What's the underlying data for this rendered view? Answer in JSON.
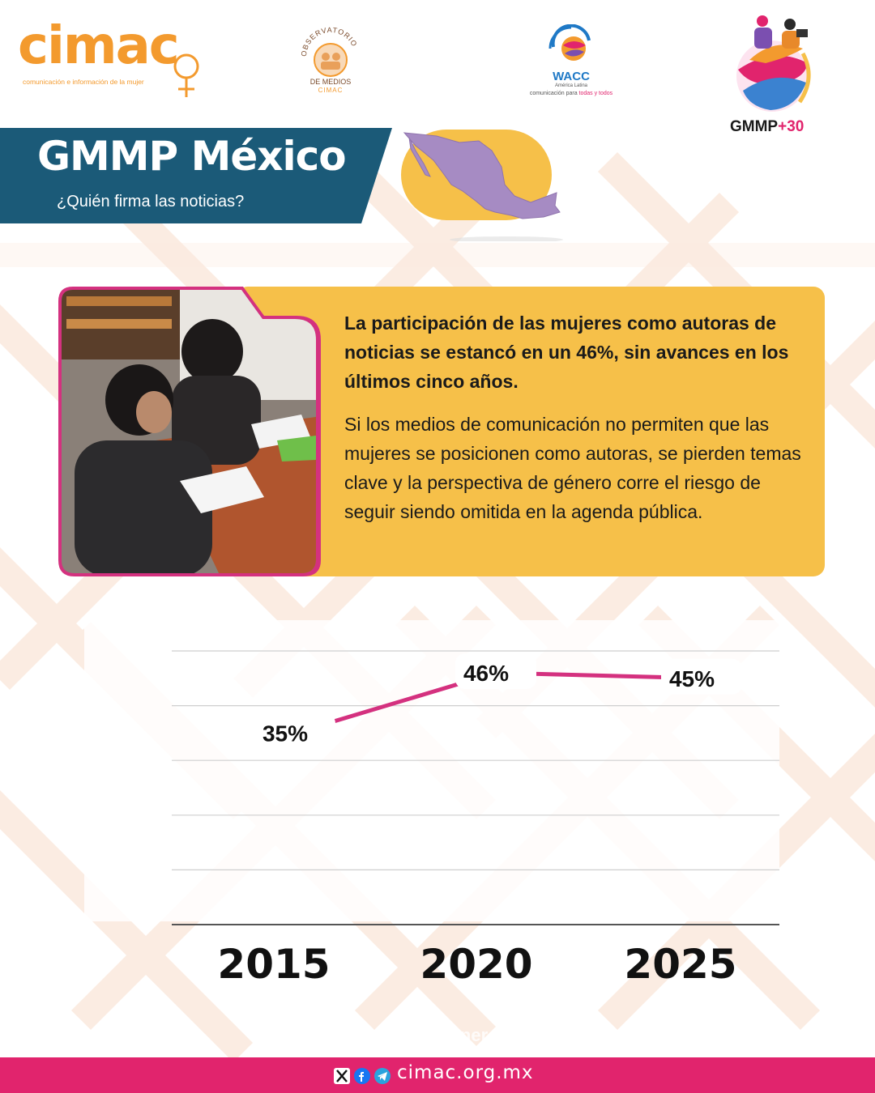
{
  "brand": {
    "cimac_name": "cimac",
    "cimac_tagline": "comunicación e información de la mujer",
    "observatorio_title": "DE MEDIOS",
    "observatorio_sub": "CIMAC",
    "observatorio_arc": "OBSERVATORIO",
    "wacc_name": "WACC",
    "wacc_region": "América Latina",
    "wacc_tagline_a": "comunicación para ",
    "wacc_tagline_b": "todas y todos",
    "gmmp_name": "GMMP",
    "gmmp_plus": "+30"
  },
  "header": {
    "title": "GMMP México",
    "subtitle": "¿Quién firma las noticias?"
  },
  "card": {
    "lead": "La participación de las mujeres como autoras de noticias se estancó en un 46%, sin avances en los últimos cinco años.",
    "body": "Si los medios de comunicación no permiten que las mujeres se posicionen como autoras, se pierden temas clave y la perspectiva de género corre el riesgo de seguir siendo omitida en la agenda pública."
  },
  "chart_data": {
    "type": "line",
    "categories": [
      "2015",
      "2020",
      "2025"
    ],
    "series": [
      {
        "values": [
          35,
          46,
          45
        ],
        "labels": [
          "35%",
          "46%",
          "45%"
        ]
      }
    ],
    "ylim": [
      0,
      50
    ],
    "grid": true,
    "colors": {
      "line": "#D4317F"
    }
  },
  "footer": {
    "hidden_text": "omisión de género en",
    "website": "cimac.org.mx",
    "social_icons": [
      "x-icon",
      "facebook-icon",
      "telegram-icon"
    ]
  },
  "colors": {
    "banner": "#1B5A78",
    "accent_orange": "#F39A2E",
    "card": "#F6C049",
    "magenta": "#E1246D",
    "map": "#A68BC3"
  }
}
